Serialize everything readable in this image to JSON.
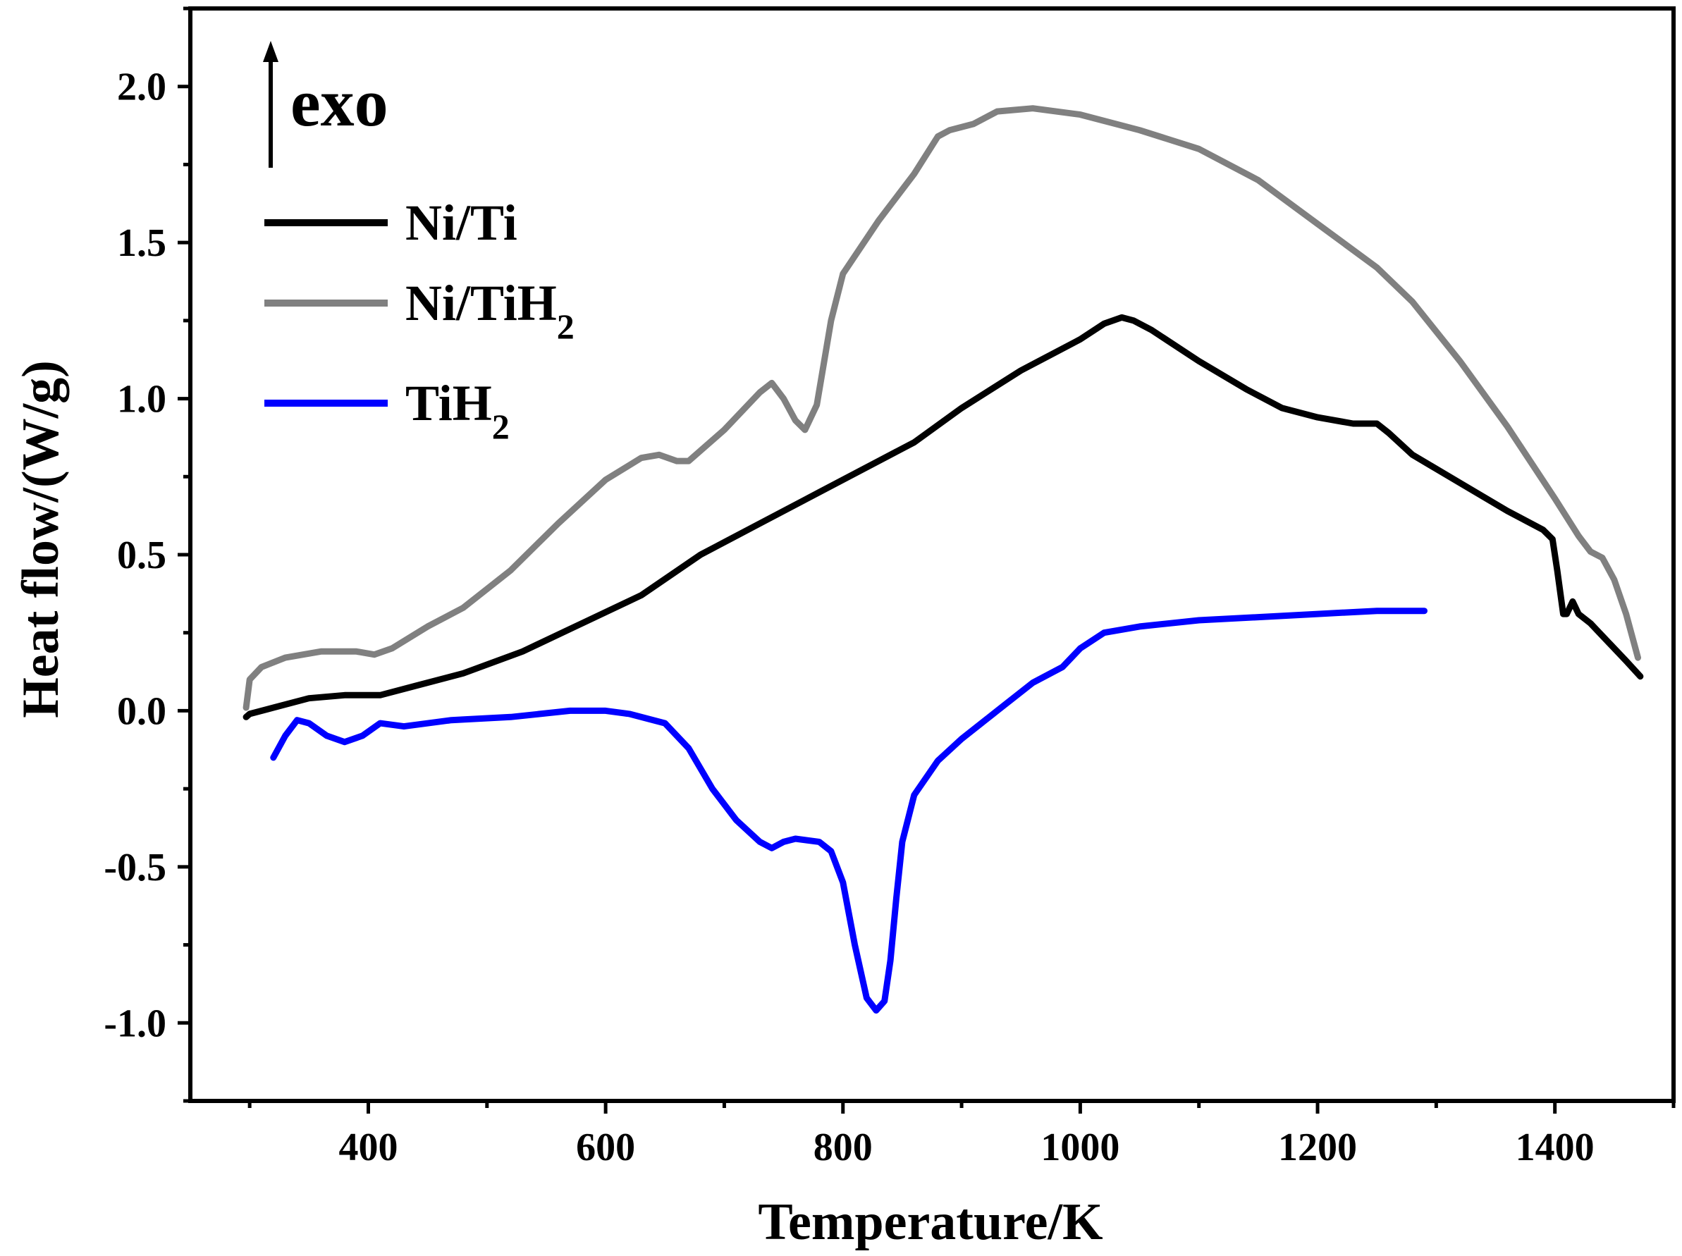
{
  "chart_data": {
    "type": "line",
    "title": "",
    "xlabel": "Temperature/K",
    "ylabel": "Heat flow/(W/g)",
    "xlim": [
      250,
      1500
    ],
    "ylim": [
      -1.25,
      2.25
    ],
    "x_ticks": [
      400,
      600,
      800,
      1000,
      1200,
      1400
    ],
    "x_tick_labels": [
      "400",
      "600",
      "800",
      "1000",
      "1200",
      "1400"
    ],
    "y_ticks": [
      -1.0,
      -0.5,
      0.0,
      0.5,
      1.0,
      1.5,
      2.0
    ],
    "y_tick_labels": [
      "-1.0",
      "-0.5",
      "0.0",
      "0.5",
      "1.0",
      "1.5",
      "2.0"
    ],
    "grid": false,
    "legend_position": "top-left",
    "annotation": {
      "text": "exo",
      "arrow": "up"
    },
    "series": [
      {
        "name": "Ni/Ti",
        "label_main": "Ni/Ti",
        "label_sub": "",
        "color": "#000000",
        "x": [
          297,
          300,
          320,
          350,
          380,
          410,
          440,
          480,
          530,
          580,
          630,
          680,
          730,
          780,
          830,
          860,
          900,
          950,
          1000,
          1020,
          1035,
          1045,
          1060,
          1100,
          1140,
          1170,
          1200,
          1230,
          1250,
          1260,
          1280,
          1320,
          1360,
          1390,
          1398,
          1402,
          1407,
          1410,
          1415,
          1420,
          1430,
          1445,
          1460,
          1472
        ],
        "values": [
          -0.02,
          -0.01,
          0.01,
          0.04,
          0.05,
          0.05,
          0.08,
          0.12,
          0.19,
          0.28,
          0.37,
          0.5,
          0.6,
          0.7,
          0.8,
          0.86,
          0.97,
          1.09,
          1.19,
          1.24,
          1.26,
          1.25,
          1.22,
          1.12,
          1.03,
          0.97,
          0.94,
          0.92,
          0.92,
          0.89,
          0.82,
          0.73,
          0.64,
          0.58,
          0.55,
          0.45,
          0.31,
          0.31,
          0.35,
          0.31,
          0.28,
          0.22,
          0.16,
          0.11
        ]
      },
      {
        "name": "Ni/TiH2",
        "label_main": "Ni/TiH",
        "label_sub": "2",
        "color": "#808080",
        "x": [
          297,
          300,
          310,
          330,
          360,
          390,
          405,
          420,
          450,
          480,
          520,
          560,
          600,
          630,
          645,
          660,
          670,
          700,
          730,
          740,
          750,
          760,
          768,
          778,
          790,
          800,
          830,
          860,
          880,
          890,
          910,
          930,
          960,
          1000,
          1050,
          1100,
          1150,
          1200,
          1250,
          1280,
          1320,
          1360,
          1400,
          1420,
          1430,
          1440,
          1450,
          1460,
          1470
        ],
        "values": [
          0.01,
          0.1,
          0.14,
          0.17,
          0.19,
          0.19,
          0.18,
          0.2,
          0.27,
          0.33,
          0.45,
          0.6,
          0.74,
          0.81,
          0.82,
          0.8,
          0.8,
          0.9,
          1.02,
          1.05,
          1.0,
          0.93,
          0.9,
          0.98,
          1.25,
          1.4,
          1.57,
          1.72,
          1.84,
          1.86,
          1.88,
          1.92,
          1.93,
          1.91,
          1.86,
          1.8,
          1.7,
          1.56,
          1.42,
          1.31,
          1.12,
          0.91,
          0.68,
          0.56,
          0.51,
          0.49,
          0.42,
          0.31,
          0.17
        ]
      },
      {
        "name": "TiH2",
        "label_main": "TiH",
        "label_sub": "2",
        "color": "#0000ff",
        "x": [
          320,
          330,
          340,
          350,
          365,
          380,
          395,
          410,
          430,
          470,
          520,
          570,
          600,
          620,
          650,
          670,
          690,
          710,
          730,
          740,
          750,
          760,
          780,
          790,
          800,
          810,
          820,
          828,
          835,
          840,
          845,
          850,
          860,
          880,
          900,
          930,
          960,
          985,
          1000,
          1020,
          1050,
          1100,
          1150,
          1200,
          1250,
          1290
        ],
        "values": [
          -0.15,
          -0.08,
          -0.03,
          -0.04,
          -0.08,
          -0.1,
          -0.08,
          -0.04,
          -0.05,
          -0.03,
          -0.02,
          0.0,
          0.0,
          -0.01,
          -0.04,
          -0.12,
          -0.25,
          -0.35,
          -0.42,
          -0.44,
          -0.42,
          -0.41,
          -0.42,
          -0.45,
          -0.55,
          -0.75,
          -0.92,
          -0.96,
          -0.93,
          -0.8,
          -0.6,
          -0.42,
          -0.27,
          -0.16,
          -0.09,
          0.0,
          0.09,
          0.14,
          0.2,
          0.25,
          0.27,
          0.29,
          0.3,
          0.31,
          0.32,
          0.32
        ]
      }
    ]
  }
}
